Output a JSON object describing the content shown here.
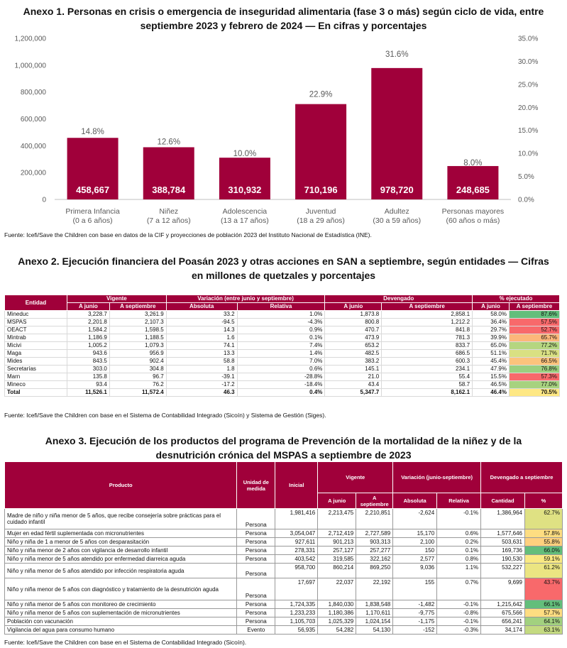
{
  "annex1": {
    "title_line1": "Anexo 1. Personas en crisis o emergencia de inseguridad alimentaria (fase 3 o más) según ciclo de vida, entre",
    "title_line2": "septiembre 2023 y febrero de 2024 — En cifras y porcentajes",
    "source": "Fuente: Icefi/Save the Children con base en datos de la CIF y proyecciones de población 2023 del Instituto Nacional de Estadística (INE).",
    "colors": {
      "bar": "#a0003a"
    }
  },
  "chart_data": {
    "type": "bar",
    "categories": [
      [
        "Primera Infancia",
        "(0 a 6 años)"
      ],
      [
        "Niñez",
        "(7 a 12 años)"
      ],
      [
        "Adolescencia",
        "(13 a 17 años)"
      ],
      [
        "Juventud",
        "(18 a 29 años)"
      ],
      [
        "Adultez",
        "(30 a 59 años)"
      ],
      [
        "Personas mayores",
        "(60 años o más)"
      ]
    ],
    "values": [
      458667,
      388784,
      310932,
      710196,
      978720,
      248685
    ],
    "value_labels": [
      "458,667",
      "388,784",
      "310,932",
      "710,196",
      "978,720",
      "248,685"
    ],
    "percentages": [
      14.8,
      12.6,
      10.0,
      22.9,
      31.6,
      8.0
    ],
    "percentage_labels": [
      "14.8%",
      "12.6%",
      "10.0%",
      "22.9%",
      "31.6%",
      "8.0%"
    ],
    "ylim": [
      0,
      1200000
    ],
    "yticks": [
      "0",
      "200,000",
      "400,000",
      "600,000",
      "800,000",
      "1,000,000",
      "1,200,000"
    ],
    "y2lim": [
      0,
      35
    ],
    "y2ticks": [
      "0.0%",
      "5.0%",
      "10.0%",
      "15.0%",
      "20.0%",
      "25.0%",
      "30.0%",
      "35.0%"
    ],
    "title": "Personas en crisis o emergencia de inseguridad alimentaria (fase 3 o más) según ciclo de vida",
    "xlabel": "",
    "ylabel": ""
  },
  "annex2": {
    "title_line1": "Anexo 2. Ejecución financiera del Poasán 2023 y otras acciones en SAN a septiembre, según entidades — Cifras",
    "title_line2": "en millones de quetzales y porcentajes",
    "source": "Fuente: Icefi/Save the Children con base en el Sistema de Contabilidad Integrado (Sicoín) y Sistema de Gestión (Siges).",
    "headers": {
      "entidad": "Entidad",
      "vigente": "Vigente",
      "variacion": "Variación (entre junio y septiembre)",
      "devengado": "Devengado",
      "ejecutado": "% ejecutado",
      "a_junio": "A junio",
      "a_septiembre": "A septiembre",
      "absoluta": "Absoluta",
      "relativa": "Relativa"
    },
    "rows": [
      [
        "Mineduc",
        "3,228.7",
        "3,261.9",
        "33.2",
        "1.0%",
        "1,873.8",
        "2,858.1",
        "58.0%",
        "87.6%"
      ],
      [
        "MSPAS",
        "2,201.8",
        "2,107.3",
        "-94.5",
        "-4.3%",
        "800.8",
        "1,212.2",
        "36.4%",
        "57.5%"
      ],
      [
        "OEACT",
        "1,584.2",
        "1,598.5",
        "14.3",
        "0.9%",
        "470.7",
        "841.8",
        "29.7%",
        "52.7%"
      ],
      [
        "Mintrab",
        "1,186.9",
        "1,188.5",
        "1.6",
        "0.1%",
        "473.9",
        "781.3",
        "39.9%",
        "65.7%"
      ],
      [
        "Micivi",
        "1,005.2",
        "1,079.3",
        "74.1",
        "7.4%",
        "653.2",
        "833.7",
        "65.0%",
        "77.2%"
      ],
      [
        "Maga",
        "943.6",
        "956.9",
        "13.3",
        "1.4%",
        "482.5",
        "686.5",
        "51.1%",
        "71.7%"
      ],
      [
        "Mides",
        "843.5",
        "902.4",
        "58.8",
        "7.0%",
        "383.2",
        "600.3",
        "45.4%",
        "66.5%"
      ],
      [
        "Secretarías",
        "303.0",
        "304.8",
        "1.8",
        "0.6%",
        "145.1",
        "234.1",
        "47.9%",
        "76.8%"
      ],
      [
        "Marn",
        "135.8",
        "96.7",
        "-39.1",
        "-28.8%",
        "21.0",
        "55.4",
        "15.5%",
        "57.3%"
      ],
      [
        "Mineco",
        "93.4",
        "76.2",
        "-17.2",
        "-18.4%",
        "43.4",
        "58.7",
        "46.5%",
        "77.0%"
      ]
    ],
    "row_colors": [
      "#63be7b",
      "#f8696b",
      "#f8696b",
      "#fcb77a",
      "#b5d680",
      "#d9e082",
      "#fcc37c",
      "#9bcf7f",
      "#f8696b",
      "#a7d27f"
    ],
    "total": [
      "Total",
      "11,526.1",
      "11,572.4",
      "46.3",
      "0.4%",
      "5,347.7",
      "8,162.1",
      "46.4%",
      "70.5%"
    ],
    "total_color": "#fee884"
  },
  "annex3": {
    "title_line1": "Anexo 3. Ejecución de los productos del programa de Prevención de la mortalidad de la niñez y de la",
    "title_line2": "desnutrición crónica del MSPAS a septiembre de 2023",
    "source": "Fuente: Icefi/Save the Children con base en el Sistema de Contabilidad Integrado (Sicoín).",
    "headers": {
      "producto": "Producto",
      "unidad": "Unidad de medida",
      "inicial": "Inicial",
      "vigente": "Vigente",
      "variacion": "Variación (junio-septiembre)",
      "devengado": "Devengado a septiembre",
      "a_junio": "A junio",
      "a_septiembre": "A septiembre",
      "absoluta": "Absoluta",
      "relativa": "Relativa",
      "cantidad": "Cantidad",
      "pct": "%"
    },
    "rows": [
      [
        "Madre de niño y niña menor de 5 años, que recibe consejería sobre prácticas para el cuidado infantil",
        "Persona",
        "1,981,416",
        "2,213,475",
        "2,210,851",
        "-2,624",
        "-0.1%",
        "1,386,964",
        "62.7%"
      ],
      [
        "Mujer en edad fértil suplementada con micronutrientes",
        "Persona",
        "3,054,047",
        "2,712,419",
        "2,727,589",
        "15,170",
        "0.6%",
        "1,577,646",
        "57.8%"
      ],
      [
        "Niño y niña de 1 a menor de 5 años con desparasitación",
        "Persona",
        "927,611",
        "901,213",
        "903,313",
        "2,100",
        "0.2%",
        "503,631",
        "55.8%"
      ],
      [
        "Niño y niña menor de 2 años con vigilancia de desarrollo infantil",
        "Persona",
        "278,331",
        "257,127",
        "257,277",
        "150",
        "0.1%",
        "169,736",
        "66.0%"
      ],
      [
        "Niño y niña menor de 5 años atendido por enfermedad diarreica aguda",
        "Persona",
        "403,542",
        "319,585",
        "322,162",
        "2,577",
        "0.8%",
        "190,530",
        "59.1%"
      ],
      [
        "Niño y niña menor de 5 años atendido por infección respiratoria aguda",
        "Persona",
        "958,700",
        "860,214",
        "869,250",
        "9,036",
        "1.1%",
        "532,227",
        "61.2%"
      ],
      [
        "Niño y niña menor de 5 años con diagnóstico y tratamiento de la desnutrición aguda",
        "Persona",
        "17,697",
        "22,037",
        "22,192",
        "155",
        "0.7%",
        "9,699",
        "43.7%"
      ],
      [
        "Niño y niña menor de 5 años con monitoreo de crecimiento",
        "Persona",
        "1,724,335",
        "1,840,030",
        "1,838,548",
        "-1,482",
        "-0.1%",
        "1,215,642",
        "66.1%"
      ],
      [
        "Niño y niña menor de 5 años con suplementación de micronutrientes",
        "Persona",
        "1,233,233",
        "1,180,386",
        "1,170,611",
        "-9,775",
        "-0.8%",
        "675,566",
        "57.7%"
      ],
      [
        "Población con vacunación",
        "Persona",
        "1,105,703",
        "1,025,329",
        "1,024,154",
        "-1,175",
        "-0.1%",
        "656,241",
        "64.1%"
      ],
      [
        "Vigilancia del agua para consumo humano",
        "Evento",
        "56,935",
        "54,282",
        "54,130",
        "-152",
        "-0.3%",
        "34,174",
        "63.1%"
      ]
    ],
    "row_colors": [
      "#dfe183",
      "#fedd81",
      "#fed07e",
      "#63be7b",
      "#f9e983",
      "#ebe582",
      "#f8696b",
      "#63be7b",
      "#fedd81",
      "#a2d17f",
      "#c4da81"
    ]
  }
}
